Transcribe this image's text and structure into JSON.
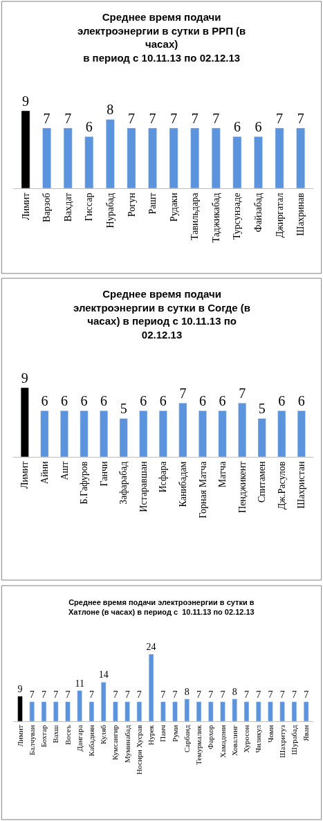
{
  "chart_data": [
    {
      "type": "bar",
      "title": "Среднее время подачи электроэнергии в сутки в РРП (в часах)\nв период с 10.11.13 по 02.12.13",
      "categories": [
        "Лимит",
        "Варзоб",
        "Вахдат",
        "Гиссар",
        "Нурабад",
        "Рогун",
        "Рашт",
        "Рудаки",
        "Тавильдара",
        "Таджикабад",
        "Турсунзаде",
        "Файзабад",
        "Джиргатал",
        "Шахринав"
      ],
      "values": [
        9,
        7,
        7,
        6,
        8,
        7,
        7,
        7,
        7,
        7,
        6,
        6,
        7,
        7
      ],
      "colors": [
        "#000000",
        "#5b93dc",
        "#5b93dc",
        "#5b93dc",
        "#5b93dc",
        "#5b93dc",
        "#5b93dc",
        "#5b93dc",
        "#5b93dc",
        "#5b93dc",
        "#5b93dc",
        "#5b93dc",
        "#5b93dc",
        "#5b93dc"
      ],
      "data_labels": true
    },
    {
      "type": "bar",
      "title": "Среднее время подачи электроэнергии в сутки в Согде (в часах) в период с 10.11.13 по 02.12.13",
      "categories": [
        "Лимит",
        "Айни",
        "Ашт",
        "Б.Гафуров",
        "Ганчи",
        "Зафарабад",
        "Истаравшан",
        "Исфара",
        "Канибадам",
        "Горная Матча",
        "Матча",
        "Пенджикент",
        "Спитамен",
        "Дж.Расулов",
        "Шахристан"
      ],
      "values": [
        9,
        6,
        6,
        6,
        6,
        5,
        6,
        6,
        7,
        6,
        6,
        7,
        5,
        6,
        6
      ],
      "colors": [
        "#000000",
        "#5b93dc",
        "#5b93dc",
        "#5b93dc",
        "#5b93dc",
        "#5b93dc",
        "#5b93dc",
        "#5b93dc",
        "#5b93dc",
        "#5b93dc",
        "#5b93dc",
        "#5b93dc",
        "#5b93dc",
        "#5b93dc",
        "#5b93dc"
      ],
      "data_labels": true
    },
    {
      "type": "bar",
      "title": "Среднее время подачи электроэнергии в сутки в\nХатлоне (в часах) в период с  10.11.13 по 02.12.13",
      "categories": [
        "Лимит",
        "Балчуван",
        "Бохтар",
        "Вахш",
        "Восеъ",
        "Дангара",
        "Кабадиян",
        "Куляб",
        "Кумсангир",
        "Муминабад",
        "Носири Хусрав",
        "Нурек",
        "Панч",
        "Руми",
        "Сарбанд",
        "Темурмалик",
        "Фархор",
        "Хамадони",
        "Ховалинг",
        "Хуросон",
        "Чиликул",
        "Чоми",
        "Шахритуз",
        "Шурабад",
        "Яван"
      ],
      "values": [
        9,
        7,
        7,
        7,
        7,
        11,
        7,
        14,
        7,
        7,
        7,
        24,
        7,
        7,
        8,
        7,
        7,
        7,
        8,
        7,
        7,
        7,
        7,
        7,
        7
      ],
      "colors": [
        "#000000",
        "#5b93dc",
        "#5b93dc",
        "#5b93dc",
        "#5b93dc",
        "#5b93dc",
        "#5b93dc",
        "#5b93dc",
        "#5b93dc",
        "#5b93dc",
        "#5b93dc",
        "#5b93dc",
        "#5b93dc",
        "#5b93dc",
        "#5b93dc",
        "#5b93dc",
        "#5b93dc",
        "#5b93dc",
        "#5b93dc",
        "#5b93dc",
        "#5b93dc",
        "#5b93dc",
        "#5b93dc",
        "#5b93dc",
        "#5b93dc"
      ],
      "data_labels": true
    }
  ]
}
